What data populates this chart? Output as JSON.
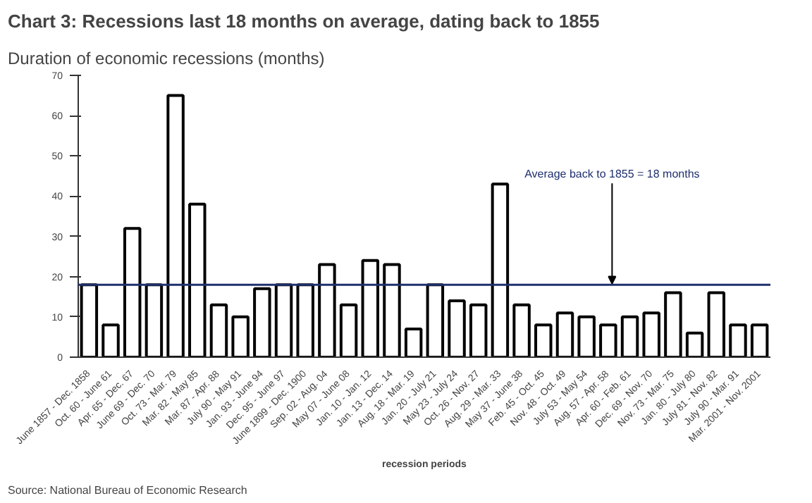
{
  "chart_data": {
    "type": "bar",
    "title": "Chart 3: Recessions last 18 months on average, dating back to 1855",
    "subtitle": "Duration of economic recessions (months)",
    "xlabel": "recession periods",
    "annotations": [
      "Source: National Bureau of Economic Research"
    ],
    "categories": [
      "June 1857 - Dec. 1858",
      "Oct. 60 - June 61",
      "Apr. 65 - Dec. 67",
      "June 69 - Dec. 70",
      "Oct. 73 - Mar. 79",
      "Mar. 82 - May 85",
      "Mar. 87 - Apr. 88",
      "July 90 - May 91",
      "Jan. 93 - June 94",
      "Dec. 95 - June 97",
      "June 1899 - Dec. 1900",
      "Sep. 02 - Aug. 04",
      "May 07 - June 08",
      "Jan. 10 - Jan. 12",
      "Jan. 13 - Dec. 14",
      "Aug. 18 - Mar. 19",
      "Jan. 20 - July 21",
      "May 23 - July 24",
      "Oct. 26 - Nov. 27",
      "Aug. 29 - Mar. 33",
      "May 37 - June 38",
      "Feb. 45 - Oct. 45",
      "Nov. 48 - Oct. 49",
      "July 53 - May 54",
      "Aug. 57 - Apr. 58",
      "Apr. 60 - Feb. 61",
      "Dec. 69 - Nov. 70",
      "Nov. 73 - Mar. 75",
      "Jan. 80 - July 80",
      "July 81 - Nov. 82",
      "July 90 - Mar. 91",
      "Mar. 2001 - Nov. 2001"
    ],
    "values": [
      18,
      8,
      32,
      18,
      65,
      38,
      13,
      10,
      17,
      18,
      18,
      23,
      13,
      24,
      23,
      7,
      18,
      14,
      13,
      43,
      13,
      8,
      11,
      10,
      8,
      10,
      11,
      16,
      6,
      16,
      8,
      8
    ],
    "color": "#ffffff",
    "ylim": [
      0,
      70
    ],
    "yticks": [
      0,
      10,
      20,
      30,
      40,
      50,
      60,
      70
    ],
    "ref_lines": [
      {
        "axis": "y",
        "value": 18,
        "label": "Average back to 1855 = 18 months",
        "color": "#1f2f6e"
      }
    ],
    "grid": false
  }
}
